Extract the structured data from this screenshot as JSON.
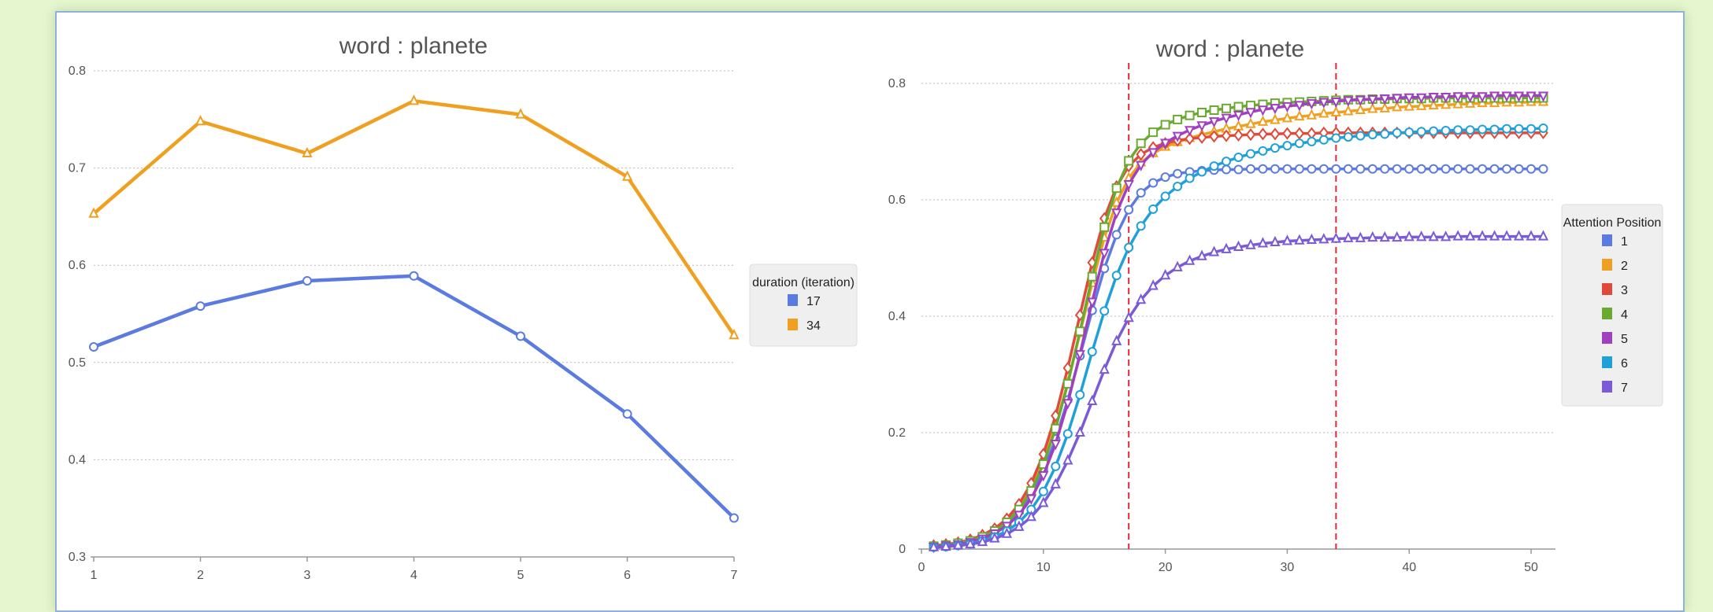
{
  "chart_data": [
    {
      "type": "line",
      "title": "word : planete",
      "x": [
        1,
        2,
        3,
        4,
        5,
        6,
        7
      ],
      "xticks": [
        "1",
        "2",
        "3",
        "4",
        "5",
        "6",
        "7"
      ],
      "ylim": [
        0.3,
        0.8
      ],
      "yticks": [
        "0.3",
        "0.4",
        "0.5",
        "0.6",
        "0.7",
        "0.8"
      ],
      "grid": "horizontal dotted",
      "legend_title": "duration (iteration)",
      "legend_position": "right",
      "series": [
        {
          "name": "17",
          "color": "#5b7be0",
          "marker": "circle",
          "values": [
            0.516,
            0.558,
            0.584,
            0.589,
            0.527,
            0.447,
            0.34
          ]
        },
        {
          "name": "34",
          "color": "#f0a020",
          "marker": "triangle",
          "values": [
            0.653,
            0.748,
            0.715,
            0.769,
            0.755,
            0.691,
            0.528
          ]
        }
      ]
    },
    {
      "type": "line",
      "title": "word : planete",
      "xlim": [
        0,
        52
      ],
      "xticks": [
        "0",
        "10",
        "20",
        "30",
        "40",
        "50"
      ],
      "ylim": [
        0,
        0.8
      ],
      "yticks": [
        "0",
        "0.2",
        "0.4",
        "0.6",
        "0.8"
      ],
      "grid": "horizontal dotted",
      "vertical_reference_lines": [
        17,
        34
      ],
      "legend_title": "Attention Position",
      "legend_position": "right",
      "x": [
        1,
        2,
        3,
        4,
        5,
        6,
        7,
        8,
        9,
        10,
        11,
        12,
        13,
        14,
        15,
        16,
        17,
        18,
        19,
        20,
        21,
        22,
        23,
        24,
        25,
        26,
        27,
        28,
        29,
        30,
        31,
        32,
        33,
        34,
        35,
        36,
        37,
        38,
        39,
        40,
        41,
        42,
        43,
        44,
        45,
        46,
        47,
        48,
        49,
        50,
        51
      ],
      "series": [
        {
          "name": "1",
          "color": "#5b7be0",
          "marker": "circle",
          "values": [
            0.005,
            0.007,
            0.01,
            0.013,
            0.02,
            0.029,
            0.043,
            0.064,
            0.093,
            0.135,
            0.189,
            0.256,
            0.332,
            0.41,
            0.482,
            0.54,
            0.583,
            0.612,
            0.629,
            0.639,
            0.645,
            0.648,
            0.65,
            0.651,
            0.652,
            0.652,
            0.653,
            0.653,
            0.653,
            0.653,
            0.653,
            0.653,
            0.653,
            0.653,
            0.653,
            0.653,
            0.653,
            0.653,
            0.653,
            0.653,
            0.653,
            0.653,
            0.653,
            0.653,
            0.653,
            0.653,
            0.653,
            0.653,
            0.653,
            0.653,
            0.653
          ]
        },
        {
          "name": "2",
          "color": "#f0a020",
          "marker": "triangle",
          "values": [
            0.006,
            0.008,
            0.011,
            0.016,
            0.023,
            0.033,
            0.049,
            0.072,
            0.105,
            0.151,
            0.211,
            0.286,
            0.371,
            0.457,
            0.535,
            0.595,
            0.637,
            0.664,
            0.68,
            0.691,
            0.699,
            0.706,
            0.712,
            0.717,
            0.722,
            0.726,
            0.73,
            0.734,
            0.737,
            0.74,
            0.743,
            0.745,
            0.748,
            0.75,
            0.752,
            0.754,
            0.756,
            0.757,
            0.759,
            0.76,
            0.761,
            0.762,
            0.763,
            0.764,
            0.765,
            0.766,
            0.766,
            0.767,
            0.767,
            0.768,
            0.768
          ]
        },
        {
          "name": "3",
          "color": "#e04a3a",
          "marker": "diamond",
          "values": [
            0.006,
            0.008,
            0.011,
            0.016,
            0.024,
            0.035,
            0.052,
            0.077,
            0.113,
            0.163,
            0.229,
            0.311,
            0.402,
            0.492,
            0.568,
            0.623,
            0.658,
            0.678,
            0.69,
            0.697,
            0.702,
            0.705,
            0.707,
            0.709,
            0.71,
            0.711,
            0.712,
            0.713,
            0.713,
            0.714,
            0.714,
            0.714,
            0.715,
            0.715,
            0.715,
            0.715,
            0.715,
            0.715,
            0.715,
            0.715,
            0.715,
            0.715,
            0.715,
            0.715,
            0.715,
            0.715,
            0.715,
            0.715,
            0.715,
            0.715,
            0.715
          ]
        },
        {
          "name": "4",
          "color": "#6aaa30",
          "marker": "square",
          "values": [
            0.005,
            0.007,
            0.01,
            0.014,
            0.021,
            0.031,
            0.046,
            0.068,
            0.1,
            0.146,
            0.207,
            0.284,
            0.374,
            0.468,
            0.553,
            0.62,
            0.667,
            0.697,
            0.716,
            0.729,
            0.738,
            0.745,
            0.75,
            0.754,
            0.757,
            0.76,
            0.762,
            0.764,
            0.766,
            0.767,
            0.768,
            0.769,
            0.77,
            0.771,
            0.772,
            0.772,
            0.773,
            0.773,
            0.774,
            0.774,
            0.774,
            0.775,
            0.775,
            0.775,
            0.775,
            0.775,
            0.775,
            0.775,
            0.775,
            0.775,
            0.775
          ]
        },
        {
          "name": "5",
          "color": "#a040c0",
          "marker": "triangle-down",
          "values": [
            0.004,
            0.006,
            0.008,
            0.012,
            0.018,
            0.027,
            0.04,
            0.059,
            0.087,
            0.127,
            0.181,
            0.251,
            0.335,
            0.425,
            0.509,
            0.578,
            0.627,
            0.66,
            0.682,
            0.698,
            0.71,
            0.72,
            0.728,
            0.735,
            0.741,
            0.746,
            0.751,
            0.755,
            0.758,
            0.761,
            0.763,
            0.766,
            0.768,
            0.769,
            0.771,
            0.772,
            0.773,
            0.774,
            0.775,
            0.776,
            0.776,
            0.777,
            0.777,
            0.778,
            0.778,
            0.778,
            0.779,
            0.779,
            0.779,
            0.779,
            0.779
          ]
        },
        {
          "name": "6",
          "color": "#20a0d8",
          "marker": "circle",
          "values": [
            0.003,
            0.004,
            0.006,
            0.009,
            0.014,
            0.021,
            0.031,
            0.046,
            0.068,
            0.099,
            0.142,
            0.198,
            0.265,
            0.339,
            0.409,
            0.47,
            0.518,
            0.555,
            0.584,
            0.606,
            0.623,
            0.637,
            0.648,
            0.658,
            0.666,
            0.673,
            0.679,
            0.684,
            0.689,
            0.693,
            0.697,
            0.7,
            0.703,
            0.706,
            0.708,
            0.71,
            0.712,
            0.713,
            0.715,
            0.716,
            0.717,
            0.718,
            0.719,
            0.72,
            0.72,
            0.721,
            0.721,
            0.722,
            0.722,
            0.722,
            0.723
          ]
        },
        {
          "name": "7",
          "color": "#7a5ad8",
          "marker": "triangle",
          "values": [
            0.003,
            0.004,
            0.006,
            0.008,
            0.012,
            0.018,
            0.026,
            0.038,
            0.055,
            0.079,
            0.111,
            0.152,
            0.2,
            0.254,
            0.308,
            0.357,
            0.397,
            0.428,
            0.452,
            0.47,
            0.484,
            0.495,
            0.503,
            0.51,
            0.515,
            0.519,
            0.522,
            0.525,
            0.527,
            0.529,
            0.53,
            0.531,
            0.532,
            0.533,
            0.534,
            0.534,
            0.535,
            0.535,
            0.535,
            0.536,
            0.536,
            0.536,
            0.536,
            0.537,
            0.537,
            0.537,
            0.537,
            0.537,
            0.537,
            0.537,
            0.537
          ]
        }
      ]
    }
  ]
}
